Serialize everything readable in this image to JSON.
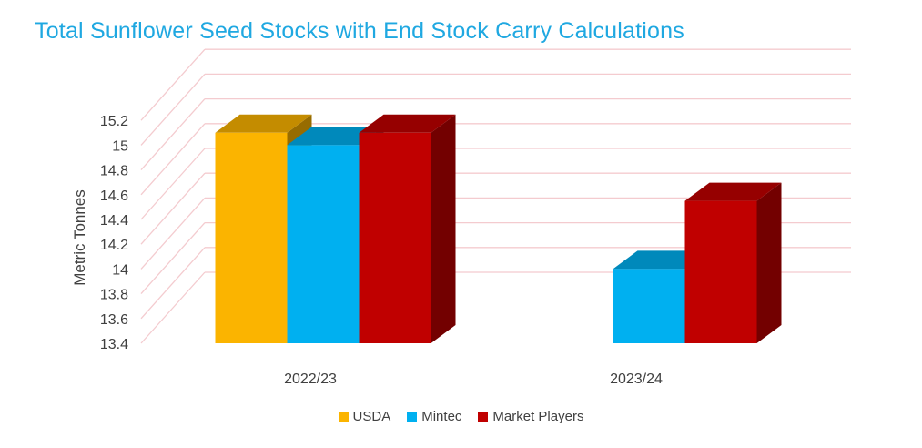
{
  "colors": {
    "title": "#1fa8e1",
    "grid": "#f4cbcf",
    "text": "#404040"
  },
  "chart_data": {
    "type": "bar",
    "title": "Total Sunflower Seed Stocks with End Stock Carry Calculations",
    "xlabel": "",
    "ylabel": "Metric Tonnes",
    "categories": [
      "2022/23",
      "2023/24"
    ],
    "ylim": [
      13.4,
      15.2
    ],
    "yticks": [
      "13.4",
      "13.6",
      "13.8",
      "14",
      "14.2",
      "14.4",
      "14.6",
      "14.8",
      "15",
      "15.2"
    ],
    "grid": true,
    "legend_position": "bottom",
    "series": [
      {
        "name": "USDA",
        "color": "#fbb400",
        "values": [
          15.1,
          null
        ]
      },
      {
        "name": "Mintec",
        "color": "#00b0f0",
        "values": [
          15.0,
          14.0
        ]
      },
      {
        "name": "Market Players",
        "color": "#c00000",
        "values": [
          15.1,
          14.55
        ]
      }
    ]
  }
}
